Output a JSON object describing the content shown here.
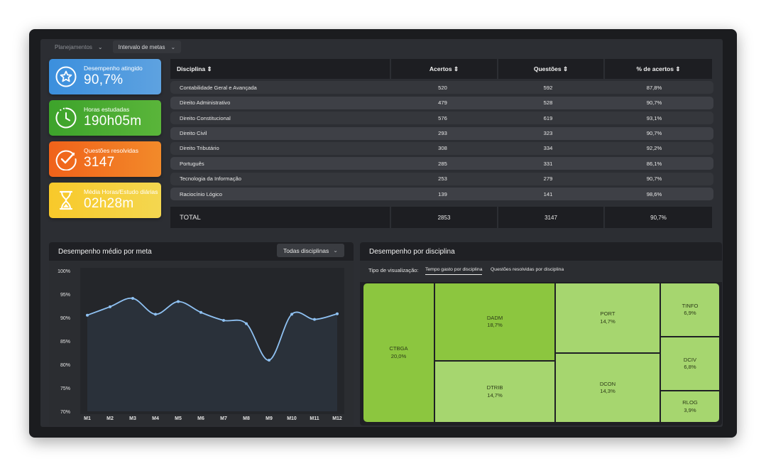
{
  "filters": [
    {
      "label": "Planejamentos",
      "dim": true
    },
    {
      "label": "Intervalo de metas",
      "dim": false
    }
  ],
  "cards": [
    {
      "label": "Desempenho atingido",
      "value": "90,7%",
      "icon": "star-icon"
    },
    {
      "label": "Horas estudadas",
      "value": "190h05m",
      "icon": "clock-icon"
    },
    {
      "label": "Questões resolvidas",
      "value": "3147",
      "icon": "check-circle-icon"
    },
    {
      "label": "Média Horas/Estudo diárias",
      "value": "02h28m",
      "icon": "hourglass-icon"
    }
  ],
  "table": {
    "headers": [
      "Disciplina",
      "Acertos",
      "Questões",
      "% de acertos"
    ],
    "rows": [
      [
        "Contabilidade Geral e Avançada",
        "520",
        "592",
        "87,8%"
      ],
      [
        "Direito Administrativo",
        "479",
        "528",
        "90,7%"
      ],
      [
        "Direito Constitucional",
        "576",
        "619",
        "93,1%"
      ],
      [
        "Direito Civil",
        "293",
        "323",
        "90,7%"
      ],
      [
        "Direito Tributário",
        "308",
        "334",
        "92,2%"
      ],
      [
        "Português",
        "285",
        "331",
        "86,1%"
      ],
      [
        "Tecnologia da Informação",
        "253",
        "279",
        "90,7%"
      ],
      [
        "Raciocínio Lógico",
        "139",
        "141",
        "98,6%"
      ]
    ],
    "total": [
      "TOTAL",
      "2853",
      "3147",
      "90,7%"
    ]
  },
  "line_panel": {
    "title": "Desempenho médio por meta",
    "dropdown": "Todas disciplinas"
  },
  "chart_data": [
    {
      "type": "line",
      "categories": [
        "M1",
        "M2",
        "M3",
        "M4",
        "M5",
        "M6",
        "M7",
        "M8",
        "M9",
        "M10",
        "M11",
        "M12"
      ],
      "values": [
        90.5,
        92.3,
        94.1,
        90.7,
        93.4,
        91.1,
        89.4,
        88.7,
        80.9,
        90.7,
        89.6,
        90.8
      ],
      "yticks": [
        "100%",
        "95%",
        "90%",
        "85%",
        "80%",
        "75%",
        "70%"
      ],
      "ylim": [
        70,
        100
      ],
      "color": "#8fc1f2"
    },
    {
      "type": "treemap",
      "tiles": [
        {
          "code": "CTBGA",
          "value": "20,0%"
        },
        {
          "code": "DADM",
          "value": "18,7%"
        },
        {
          "code": "DTRIB",
          "value": "14,7%"
        },
        {
          "code": "PORT",
          "value": "14,7%"
        },
        {
          "code": "DCON",
          "value": "14,3%"
        },
        {
          "code": "TINFO",
          "value": "6,9%"
        },
        {
          "code": "DCIV",
          "value": "6,8%"
        },
        {
          "code": "RLOG",
          "value": "3,9%"
        }
      ]
    }
  ],
  "tree_panel": {
    "title": "Desempenho por disciplina",
    "viz_label": "Tipo de visualização:",
    "tabs": [
      "Tempo gasto por disciplina",
      "Questões resolvidas por disciplina"
    ]
  },
  "colors": {
    "blue": "#3b8fdd",
    "green": "#3da32b",
    "orange": "#f0621a",
    "yellow": "#f8c92a",
    "tree_dark": "#8cc63f",
    "tree_light": "#a6d66f"
  }
}
